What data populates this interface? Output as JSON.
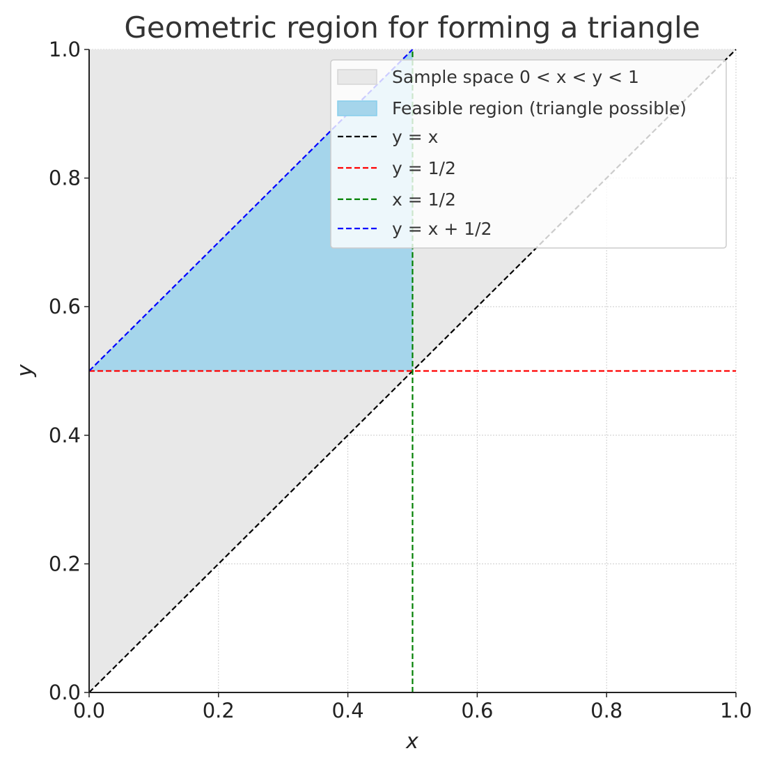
{
  "colors": {
    "sample_space_fill": "#e8e8e8",
    "feasible_fill": "#a5d5eb",
    "feasible_edge": "#87ceeb",
    "line_y_eq_x": "#000000",
    "line_y_half": "#ff0000",
    "line_x_half": "#008000",
    "line_y_x_plus_half": "#0000ff",
    "grid": "#cccccc",
    "axis": "#222222"
  },
  "chart_data": {
    "type": "area",
    "title": "Geometric region for forming a triangle",
    "xlabel": "x",
    "ylabel": "y",
    "xlim": [
      0,
      1
    ],
    "ylim": [
      0,
      1
    ],
    "x_ticks": [
      0.0,
      0.2,
      0.4,
      0.6,
      0.8,
      1.0
    ],
    "y_ticks": [
      0.0,
      0.2,
      0.4,
      0.6,
      0.8,
      1.0
    ],
    "x_tick_labels": [
      "0.0",
      "0.2",
      "0.4",
      "0.6",
      "0.8",
      "1.0"
    ],
    "y_tick_labels": [
      "0.0",
      "0.2",
      "0.4",
      "0.6",
      "0.8",
      "1.0"
    ],
    "grid": true,
    "legend_position": "top-right",
    "regions": [
      {
        "name": "Sample space 0 < x < y < 1",
        "kind": "fill",
        "vertices": [
          [
            0,
            0
          ],
          [
            0,
            1
          ],
          [
            1,
            1
          ]
        ]
      },
      {
        "name": "Feasible region (triangle possible)",
        "kind": "fill",
        "vertices": [
          [
            0,
            0.5
          ],
          [
            0.5,
            1
          ],
          [
            0.5,
            0.5
          ]
        ]
      }
    ],
    "series": [
      {
        "name": "y = x",
        "kind": "dashed-line",
        "points": [
          [
            0,
            0
          ],
          [
            1,
            1
          ]
        ]
      },
      {
        "name": "y = 1/2",
        "kind": "dashed-line",
        "points": [
          [
            0,
            0.5
          ],
          [
            1,
            0.5
          ]
        ]
      },
      {
        "name": "x = 1/2",
        "kind": "dashed-line",
        "points": [
          [
            0.5,
            0
          ],
          [
            0.5,
            1
          ]
        ]
      },
      {
        "name": "y = x + 1/2",
        "kind": "dashed-line",
        "points": [
          [
            0,
            0.5
          ],
          [
            0.5,
            1
          ]
        ]
      }
    ]
  }
}
